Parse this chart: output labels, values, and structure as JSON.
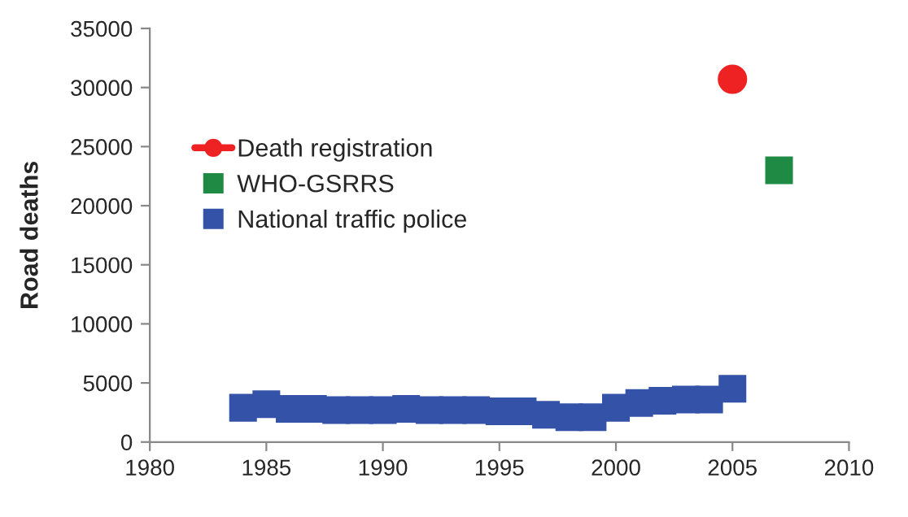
{
  "chart_data": {
    "type": "scatter",
    "ylabel": "Road deaths",
    "series": [
      {
        "name": "Death registration",
        "type": "line",
        "marker": "circle",
        "color": "#ee2222",
        "x": [
          2005
        ],
        "values": [
          30700
        ]
      },
      {
        "name": "WHO-GSRRS",
        "type": "scatter",
        "marker": "square",
        "color": "#1e8a44",
        "x": [
          2007
        ],
        "values": [
          23000
        ]
      },
      {
        "name": "National traffic police",
        "marker": "square",
        "color": "#3352a8",
        "x": [
          1984,
          1985,
          1986,
          1987,
          1988,
          1989,
          1990,
          1991,
          1992,
          1993,
          1994,
          1995,
          1996,
          1997,
          1998,
          1999,
          2000,
          2001,
          2002,
          2003,
          2004,
          2005
        ],
        "values": [
          2900,
          3200,
          2800,
          2800,
          2700,
          2700,
          2700,
          2800,
          2700,
          2700,
          2700,
          2600,
          2600,
          2300,
          2100,
          2100,
          2900,
          3300,
          3500,
          3600,
          3600,
          4500
        ]
      }
    ],
    "xlim": [
      1980,
      2010
    ],
    "xticks": [
      1980,
      1985,
      1990,
      1995,
      2000,
      2005,
      2010
    ],
    "ylim": [
      0,
      35000
    ],
    "yticks": [
      0,
      5000,
      10000,
      15000,
      20000,
      25000,
      30000,
      35000
    ],
    "grid": false,
    "legend": "left"
  }
}
